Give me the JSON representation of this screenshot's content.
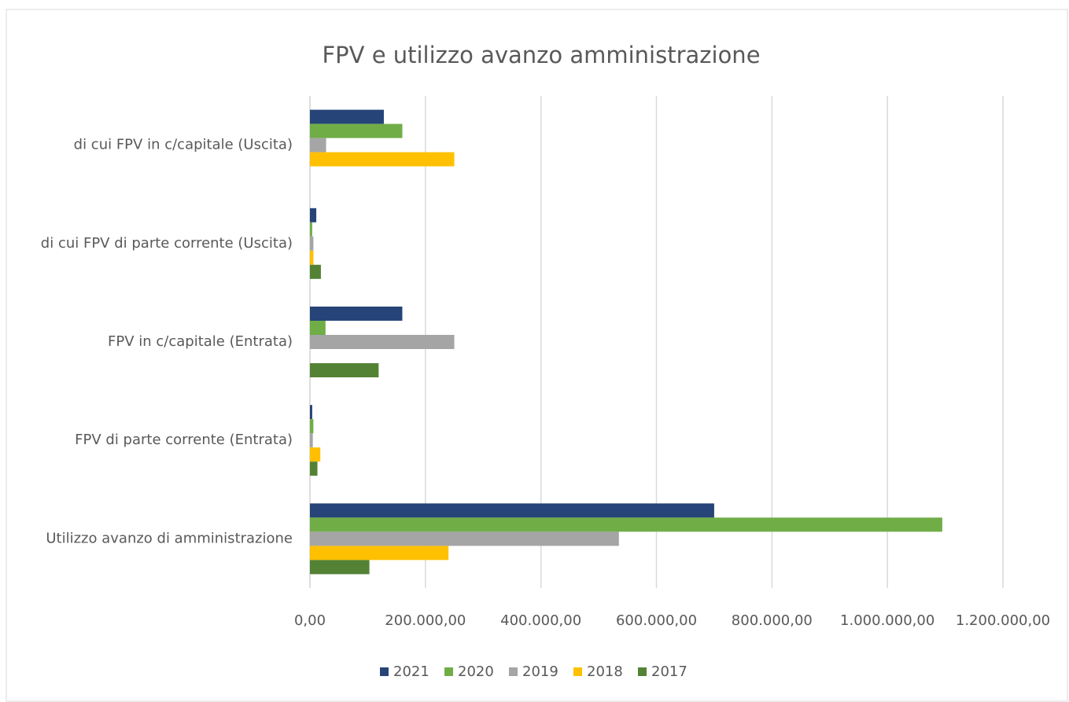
{
  "chart_data": {
    "type": "bar",
    "orientation": "horizontal",
    "title": "FPV e utilizzo avanzo amministrazione",
    "categories": [
      "Utilizzo avanzo di amministrazione",
      "FPV di parte corrente (Entrata)",
      "FPV in c/capitale (Entrata)",
      "di cui FPV di parte corrente (Uscita)",
      "di cui FPV in c/capitale (Uscita)"
    ],
    "series": [
      {
        "name": "2021",
        "color": "#264478",
        "values": [
          700000,
          4000,
          160000,
          11000,
          128000
        ]
      },
      {
        "name": "2020",
        "color": "#70ad47",
        "values": [
          1095000,
          6000,
          27000,
          4000,
          160000
        ]
      },
      {
        "name": "2019",
        "color": "#a5a5a5",
        "values": [
          535000,
          5000,
          250000,
          6000,
          28000
        ]
      },
      {
        "name": "2018",
        "color": "#ffc000",
        "values": [
          240000,
          18000,
          0,
          6000,
          250000
        ]
      },
      {
        "name": "2017",
        "color": "#548235",
        "values": [
          103000,
          13000,
          119000,
          19000,
          0
        ]
      }
    ],
    "xlim": [
      0,
      1200000
    ],
    "xticks": [
      {
        "value": 0,
        "label": "0,00"
      },
      {
        "value": 200000,
        "label": "200.000,00"
      },
      {
        "value": 400000,
        "label": "400.000,00"
      },
      {
        "value": 600000,
        "label": "600.000,00"
      },
      {
        "value": 800000,
        "label": "800.000,00"
      },
      {
        "value": 1000000,
        "label": "1.000.000,00"
      },
      {
        "value": 1200000,
        "label": "1.200.000,00"
      }
    ],
    "grid": true,
    "legend": "bottom"
  }
}
